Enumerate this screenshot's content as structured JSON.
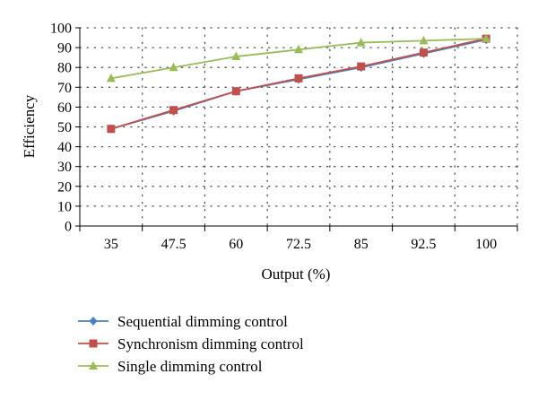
{
  "chart_data": {
    "type": "line",
    "title": "",
    "xlabel": "Output (%)",
    "ylabel": "Efficiency",
    "categories": [
      "35",
      "47.5",
      "60",
      "72.5",
      "85",
      "92.5",
      "100"
    ],
    "ylim": [
      0,
      100
    ],
    "yticks": [
      0,
      10,
      20,
      30,
      40,
      50,
      60,
      70,
      80,
      90,
      100
    ],
    "grid": "dotted",
    "legend_position": "bottom-left",
    "series": [
      {
        "name": "Sequential dimming control",
        "marker": "diamond",
        "color": "#4f81bd",
        "values": [
          49,
          58,
          68,
          74,
          80,
          87,
          94
        ]
      },
      {
        "name": "Synchronism dimming control",
        "marker": "square",
        "color": "#c0504d",
        "values": [
          49,
          58.5,
          68,
          74.5,
          80.5,
          87.5,
          94.5
        ]
      },
      {
        "name": "Single dimming control",
        "marker": "triangle",
        "color": "#9bbb59",
        "values": [
          74.5,
          80,
          85.5,
          89,
          92.5,
          93.5,
          94.5
        ]
      }
    ]
  }
}
